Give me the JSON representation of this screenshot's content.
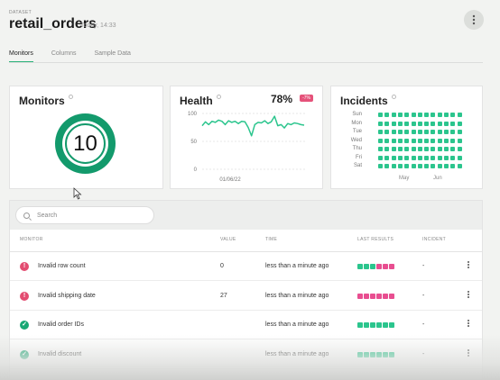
{
  "header": {
    "crumb": "DATASET",
    "title": "retail_orders",
    "meta": "Today, 14:33",
    "tabs": [
      {
        "label": "Monitors",
        "active": true
      },
      {
        "label": "Columns",
        "active": false
      },
      {
        "label": "Sample Data",
        "active": false
      }
    ]
  },
  "monitors_card": {
    "title": "Monitors",
    "count": "10",
    "ring_color": "#139a6c"
  },
  "health_card": {
    "title": "Health",
    "percent": "78%",
    "delta": "-7%",
    "y_ticks": [
      "100",
      "50",
      "0"
    ],
    "x_label": "01/06/22",
    "series": [
      78,
      85,
      80,
      86,
      84,
      88,
      86,
      80,
      87,
      84,
      86,
      82,
      86,
      85,
      75,
      60,
      80,
      84,
      83,
      87,
      82,
      85,
      95,
      78,
      80,
      74,
      82,
      80,
      83,
      82,
      80,
      79
    ]
  },
  "incidents_card": {
    "title": "Incidents",
    "days": [
      "Sun",
      "Mon",
      "Tue",
      "Wed",
      "Thu",
      "Fri",
      "Sat"
    ],
    "months": [
      "May",
      "Jun"
    ],
    "weeks": 13,
    "dot_color": "#2bc58d"
  },
  "table": {
    "search_placeholder": "Search",
    "columns": [
      "MONITOR",
      "VALUE",
      "TIME",
      "LAST RESULTS",
      "INCIDENT"
    ],
    "rows": [
      {
        "status": "error",
        "monitor": "Invalid row count",
        "value": "0",
        "time": "less than a minute ago",
        "results": [
          "ok",
          "ok",
          "ok",
          "err",
          "err",
          "err"
        ],
        "incident": "-"
      },
      {
        "status": "error",
        "monitor": "Invalid shipping date",
        "value": "27",
        "time": "less than a minute ago",
        "results": [
          "err",
          "err",
          "err",
          "err",
          "err",
          "err"
        ],
        "incident": "-"
      },
      {
        "status": "ok",
        "monitor": "Invalid order IDs",
        "value": "",
        "time": "less than a minute ago",
        "results": [
          "ok",
          "ok",
          "ok",
          "ok",
          "ok",
          "ok"
        ],
        "incident": "-"
      },
      {
        "status": "ok",
        "monitor": "Invalid discount",
        "value": "",
        "time": "less than a minute ago",
        "results": [
          "ok",
          "ok",
          "ok",
          "ok",
          "ok",
          "ok"
        ],
        "incident": "-"
      }
    ]
  },
  "colors": {
    "ok": "#2bc58d",
    "error": "#e84e90",
    "accent": "#2bb37b"
  }
}
